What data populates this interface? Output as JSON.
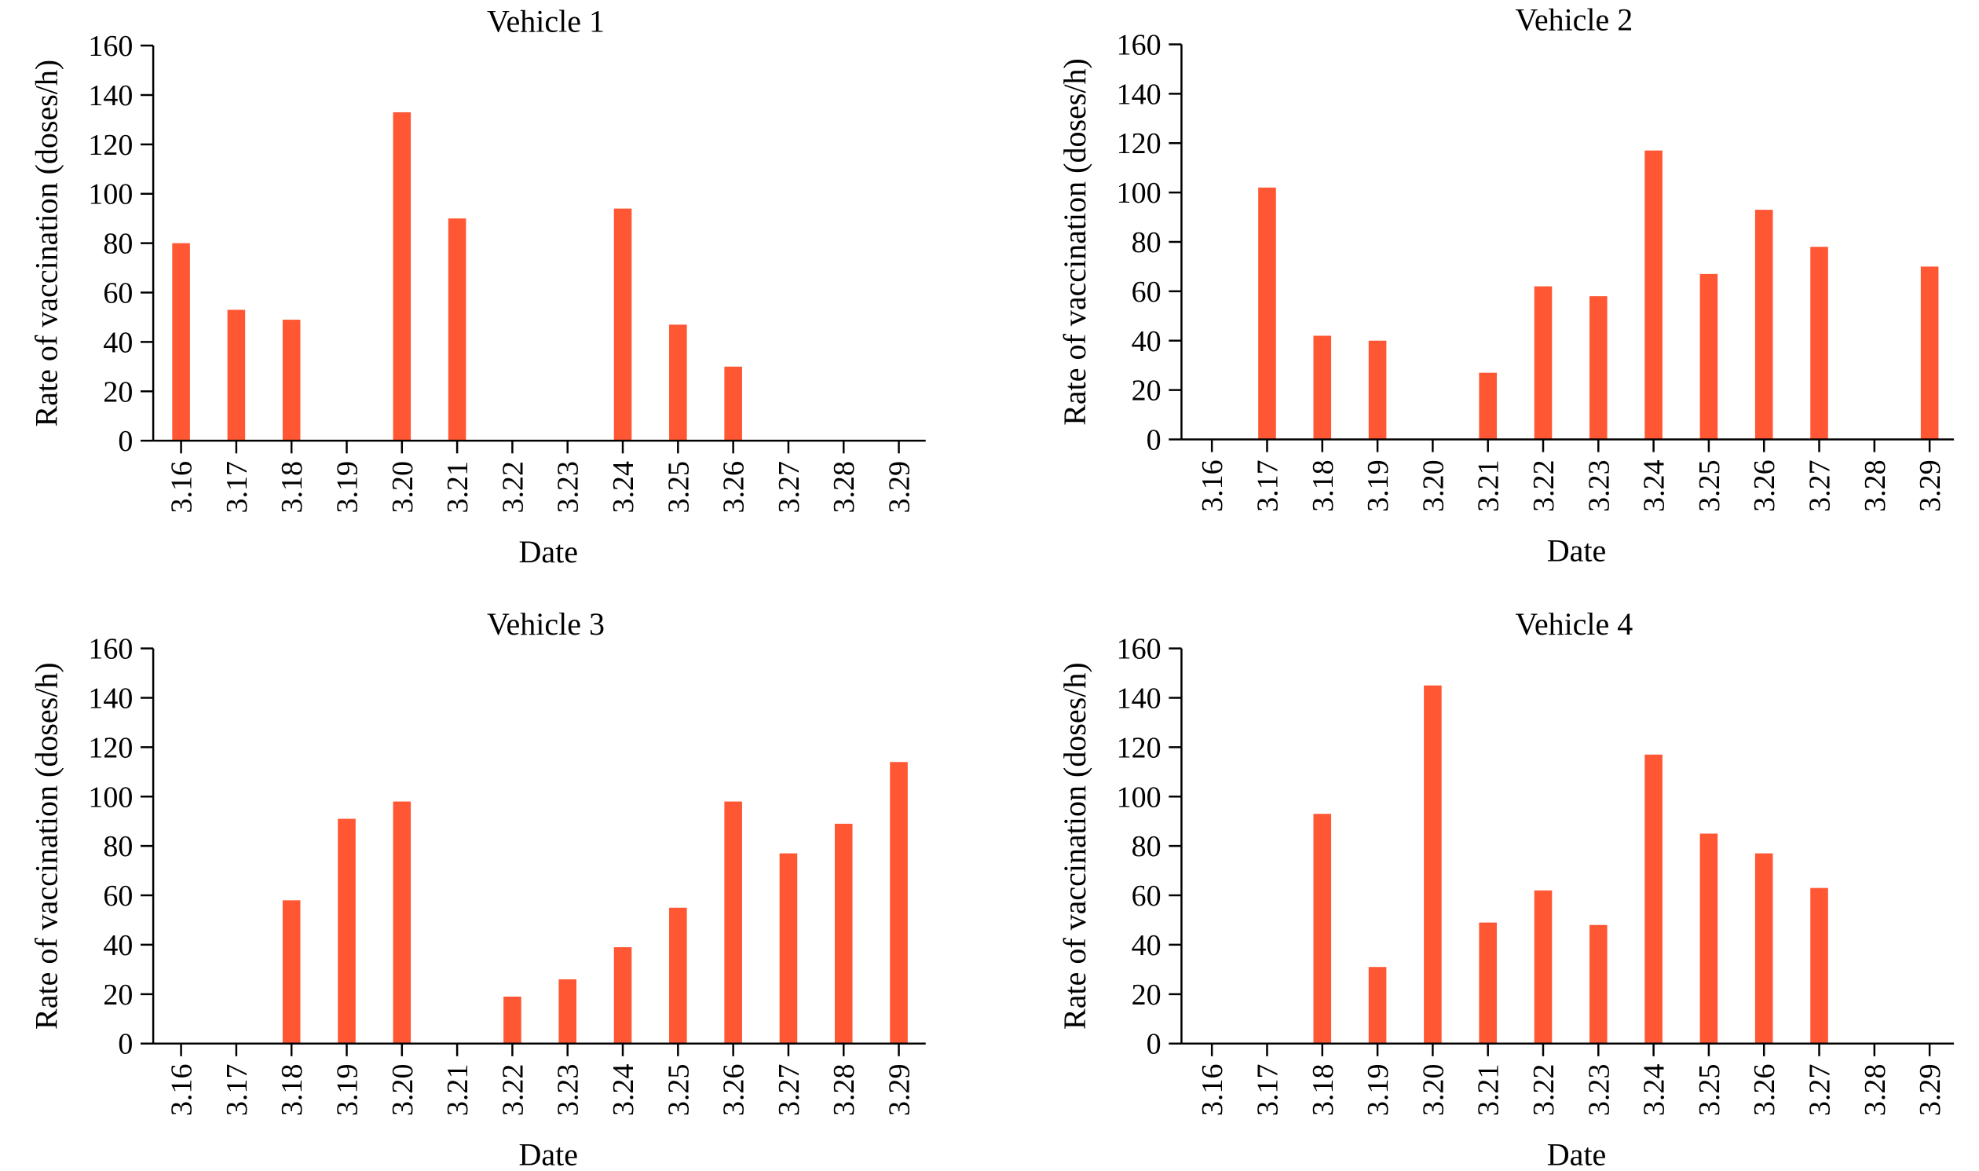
{
  "bar_color": "#ff5733",
  "chart_data": [
    {
      "type": "bar",
      "title": "Vehicle 1",
      "xlabel": "Date",
      "ylabel": "Rate of vaccination (doses/h)",
      "ylim": [
        0,
        160
      ],
      "yticks": [
        "0",
        "20",
        "40",
        "60",
        "80",
        "100",
        "120",
        "140",
        "160"
      ],
      "categories": [
        "3.16",
        "3.17",
        "3.18",
        "3.19",
        "3.20",
        "3.21",
        "3.22",
        "3.23",
        "3.24",
        "3.25",
        "3.26",
        "3.27",
        "3.28",
        "3.29"
      ],
      "values": [
        80,
        53,
        49,
        0,
        133,
        90,
        0,
        0,
        94,
        47,
        30,
        0,
        0,
        0
      ],
      "grid": false,
      "legend": false
    },
    {
      "type": "bar",
      "title": "Vehicle 2",
      "xlabel": "Date",
      "ylabel": "Rate of vaccination (doses/h)",
      "ylim": [
        0,
        160
      ],
      "yticks": [
        "0",
        "20",
        "40",
        "60",
        "80",
        "100",
        "120",
        "140",
        "160"
      ],
      "categories": [
        "3.16",
        "3.17",
        "3.18",
        "3.19",
        "3.20",
        "3.21",
        "3.22",
        "3.23",
        "3.24",
        "3.25",
        "3.26",
        "3.27",
        "3.28",
        "3.29"
      ],
      "values": [
        0,
        102,
        42,
        40,
        0,
        27,
        62,
        58,
        117,
        67,
        93,
        78,
        0,
        70
      ],
      "grid": false,
      "legend": false
    },
    {
      "type": "bar",
      "title": "Vehicle 3",
      "xlabel": "Date",
      "ylabel": "Rate of vaccination (doses/h)",
      "ylim": [
        0,
        160
      ],
      "yticks": [
        "0",
        "20",
        "40",
        "60",
        "80",
        "100",
        "120",
        "140",
        "160"
      ],
      "categories": [
        "3.16",
        "3.17",
        "3.18",
        "3.19",
        "3.20",
        "3.21",
        "3.22",
        "3.23",
        "3.24",
        "3.25",
        "3.26",
        "3.27",
        "3.28",
        "3.29"
      ],
      "values": [
        0,
        0,
        58,
        91,
        98,
        0,
        19,
        26,
        39,
        55,
        98,
        77,
        89,
        114
      ],
      "grid": false,
      "legend": false
    },
    {
      "type": "bar",
      "title": "Vehicle 4",
      "xlabel": "Date",
      "ylabel": "Rate of vaccination (doses/h)",
      "ylim": [
        0,
        160
      ],
      "yticks": [
        "0",
        "20",
        "40",
        "60",
        "80",
        "100",
        "120",
        "140",
        "160"
      ],
      "categories": [
        "3.16",
        "3.17",
        "3.18",
        "3.19",
        "3.20",
        "3.21",
        "3.22",
        "3.23",
        "3.24",
        "3.25",
        "3.26",
        "3.27",
        "3.28",
        "3.29"
      ],
      "values": [
        0,
        0,
        93,
        31,
        145,
        49,
        62,
        48,
        117,
        85,
        77,
        63,
        0,
        0
      ],
      "grid": false,
      "legend": false
    }
  ]
}
